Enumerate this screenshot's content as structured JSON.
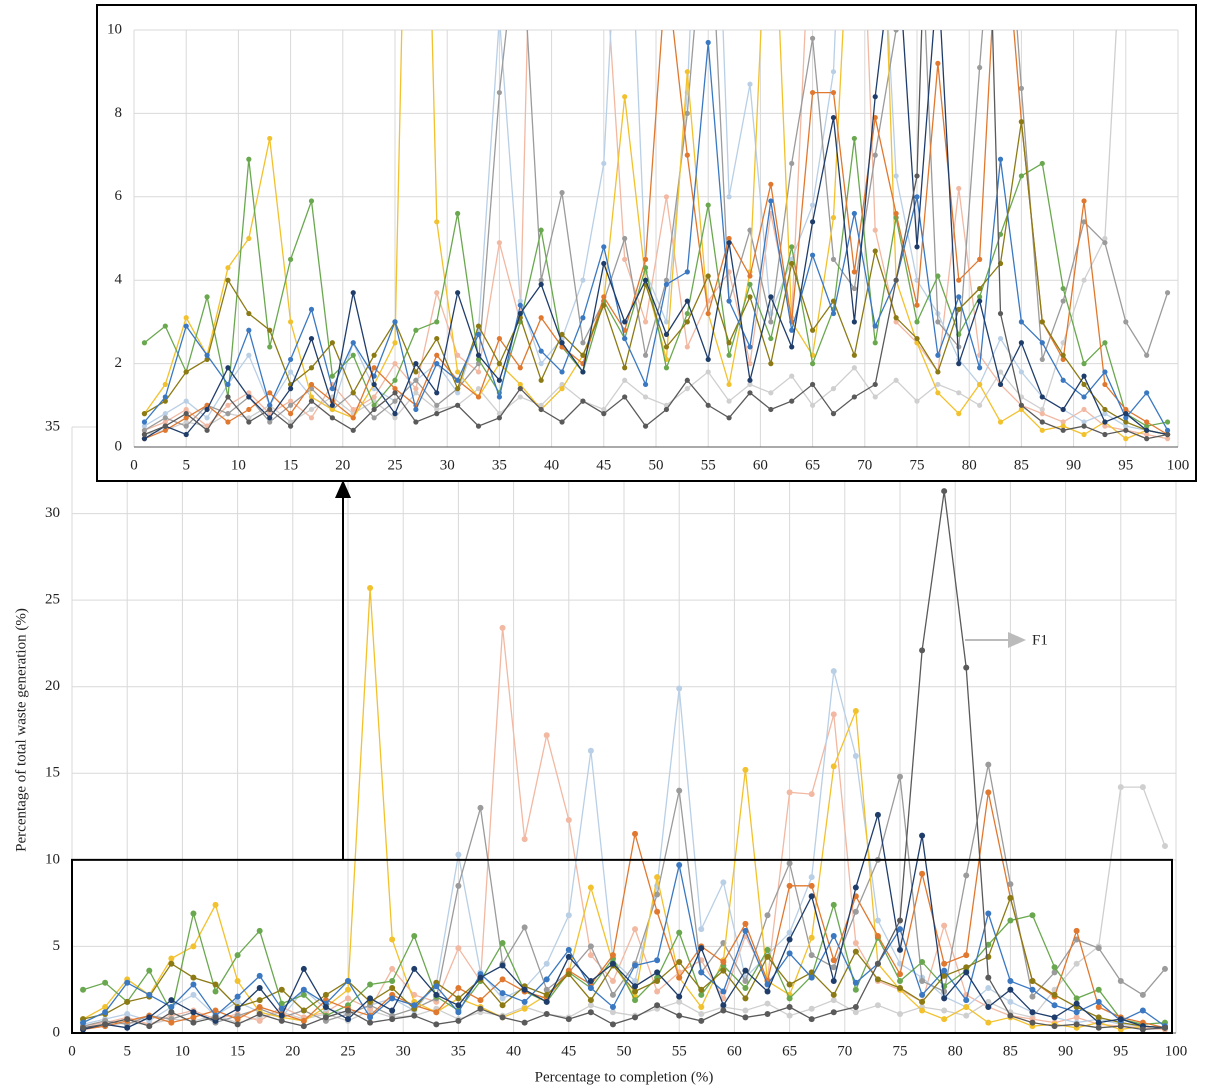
{
  "chart_data": {
    "type": "line",
    "y_label": "Percentage of total waste generation (%)",
    "x_label": "Percentage to completion  (%)",
    "annotation": "F1",
    "xlim": [
      0,
      100
    ],
    "xticks": [
      0,
      5,
      10,
      15,
      20,
      25,
      30,
      35,
      40,
      45,
      50,
      55,
      60,
      65,
      70,
      75,
      80,
      85,
      90,
      95,
      100
    ],
    "ylim": [
      0,
      35
    ],
    "yticks": [
      0,
      5,
      10,
      15,
      20,
      25,
      30,
      35
    ],
    "grid": true,
    "inset": {
      "ylim": [
        0,
        10
      ],
      "yticks": [
        0,
        2,
        4,
        6,
        8,
        10
      ]
    },
    "x": [
      1,
      3,
      5,
      7,
      9,
      11,
      13,
      15,
      17,
      19,
      21,
      23,
      25,
      27,
      29,
      31,
      33,
      35,
      37,
      39,
      41,
      43,
      45,
      47,
      49,
      51,
      53,
      55,
      57,
      59,
      61,
      63,
      65,
      67,
      69,
      71,
      73,
      75,
      77,
      79,
      81,
      83,
      85,
      87,
      89,
      91,
      93,
      95,
      97,
      99
    ],
    "series": [
      {
        "color": "#cfcfcf",
        "values": [
          0.3,
          0.4,
          0.6,
          0.5,
          0.8,
          0.7,
          1.0,
          0.6,
          0.9,
          1.2,
          0.8,
          1.1,
          0.7,
          1.3,
          0.9,
          1.0,
          1.4,
          0.8,
          1.2,
          1.0,
          1.5,
          1.1,
          0.9,
          1.6,
          1.2,
          1.0,
          1.4,
          1.8,
          1.1,
          1.5,
          1.3,
          1.7,
          1.0,
          1.4,
          1.9,
          1.2,
          1.6,
          1.1,
          1.5,
          1.3,
          1.0,
          1.8,
          1.2,
          0.9,
          2.5,
          4.0,
          5.0,
          14.2,
          14.2,
          10.8
        ]
      },
      {
        "color": "#f2b8a2",
        "values": [
          0.4,
          0.6,
          0.9,
          0.5,
          1.0,
          1.3,
          0.8,
          1.1,
          0.7,
          1.5,
          0.9,
          1.2,
          2.0,
          1.4,
          3.7,
          2.2,
          1.8,
          4.9,
          3.0,
          23.4,
          11.2,
          17.2,
          12.3,
          4.5,
          3.0,
          6.0,
          2.4,
          3.5,
          4.2,
          2.0,
          5.6,
          3.1,
          13.9,
          13.8,
          18.4,
          5.2,
          3.0,
          2.5,
          1.8,
          6.2,
          2.2,
          1.5,
          1.0,
          0.8,
          0.6,
          0.9,
          0.5,
          0.4,
          0.3,
          0.2
        ]
      },
      {
        "color": "#b9cfe6",
        "values": [
          0.5,
          0.8,
          1.1,
          0.7,
          1.5,
          2.2,
          1.0,
          1.8,
          1.2,
          0.9,
          2.5,
          1.4,
          1.1,
          1.6,
          2.0,
          1.3,
          2.8,
          10.3,
          3.5,
          2.0,
          2.6,
          4.0,
          6.8,
          16.3,
          4.2,
          3.0,
          8.5,
          19.9,
          6.0,
          8.7,
          3.2,
          4.5,
          5.8,
          9.0,
          20.9,
          16.0,
          6.5,
          4.0,
          3.2,
          2.1,
          1.5,
          2.6,
          1.8,
          1.2,
          0.9,
          0.6,
          0.8,
          0.5,
          0.4,
          0.3
        ]
      },
      {
        "color": "#9b9b9b",
        "values": [
          0.4,
          0.7,
          0.5,
          1.0,
          0.8,
          1.2,
          0.6,
          1.0,
          1.4,
          0.9,
          1.3,
          0.7,
          1.1,
          1.6,
          1.0,
          1.4,
          2.0,
          8.5,
          13.0,
          4.0,
          6.1,
          2.5,
          3.5,
          5.0,
          2.2,
          4.0,
          8.0,
          14.0,
          3.5,
          5.2,
          3.0,
          6.8,
          9.8,
          4.5,
          3.8,
          7.0,
          10.0,
          14.8,
          3.0,
          2.4,
          9.1,
          15.5,
          8.6,
          2.1,
          3.5,
          5.4,
          4.9,
          3.0,
          2.2,
          3.7
        ]
      },
      {
        "color": "#f2c12e",
        "values": [
          0.8,
          1.5,
          3.1,
          2.2,
          4.3,
          5.0,
          7.4,
          3.0,
          1.2,
          0.9,
          0.7,
          1.5,
          2.5,
          25.7,
          5.4,
          1.8,
          1.2,
          2.0,
          1.5,
          0.9,
          1.4,
          2.2,
          3.5,
          8.4,
          4.0,
          2.1,
          9.0,
          3.2,
          1.5,
          4.2,
          15.2,
          3.0,
          2.2,
          5.5,
          15.4,
          18.6,
          4.0,
          2.5,
          1.3,
          0.8,
          1.5,
          0.6,
          0.9,
          0.4,
          0.5,
          0.3,
          0.6,
          0.2,
          0.4,
          0.3
        ]
      },
      {
        "color": "#6aa84f",
        "values": [
          2.5,
          2.9,
          1.8,
          3.6,
          1.2,
          6.9,
          2.4,
          4.5,
          5.9,
          1.7,
          2.2,
          1.0,
          1.6,
          2.8,
          3.0,
          5.6,
          2.1,
          1.3,
          3.0,
          5.2,
          2.4,
          1.8,
          3.5,
          2.6,
          4.3,
          1.9,
          3.2,
          5.8,
          2.2,
          3.9,
          2.6,
          4.8,
          2.0,
          3.3,
          7.4,
          2.5,
          5.5,
          3.0,
          4.1,
          2.7,
          3.6,
          5.1,
          6.5,
          6.8,
          3.8,
          2.0,
          2.5,
          0.8,
          0.5,
          0.6
        ]
      },
      {
        "color": "#e0782f",
        "values": [
          0.2,
          0.4,
          0.7,
          1.0,
          0.6,
          0.9,
          1.3,
          0.8,
          1.5,
          1.1,
          0.7,
          1.9,
          1.4,
          1.0,
          2.2,
          1.6,
          1.2,
          2.6,
          1.9,
          3.1,
          2.4,
          2.0,
          3.6,
          2.8,
          4.5,
          11.5,
          7.0,
          3.2,
          5.0,
          4.1,
          6.3,
          3.0,
          8.5,
          8.5,
          4.2,
          7.9,
          5.6,
          3.4,
          9.2,
          4.0,
          4.5,
          13.9,
          7.8,
          3.0,
          2.1,
          5.9,
          1.5,
          0.9,
          0.6,
          0.3
        ]
      },
      {
        "color": "#8c7a14",
        "values": [
          0.8,
          1.1,
          1.8,
          2.1,
          4.0,
          3.2,
          2.8,
          1.5,
          1.9,
          2.5,
          1.3,
          2.2,
          3.0,
          1.8,
          2.6,
          1.4,
          2.9,
          2.0,
          3.1,
          1.6,
          2.7,
          2.2,
          3.4,
          1.9,
          3.9,
          2.4,
          3.0,
          4.1,
          2.5,
          3.6,
          2.0,
          4.4,
          2.8,
          3.5,
          2.2,
          4.7,
          3.1,
          2.6,
          1.8,
          3.3,
          3.8,
          4.4,
          7.8,
          3.0,
          2.2,
          1.5,
          0.9,
          0.6,
          0.4,
          0.3
        ]
      },
      {
        "color": "#3a78c2",
        "values": [
          0.6,
          1.2,
          2.9,
          2.2,
          1.5,
          2.8,
          1.0,
          2.1,
          3.3,
          1.4,
          2.5,
          1.7,
          3.0,
          0.9,
          2.0,
          1.6,
          2.7,
          1.2,
          3.4,
          2.3,
          1.8,
          3.1,
          4.8,
          2.6,
          1.5,
          3.9,
          4.2,
          9.7,
          3.5,
          2.4,
          5.9,
          2.8,
          4.6,
          3.2,
          5.6,
          2.9,
          4.0,
          6.0,
          2.2,
          3.6,
          1.9,
          6.9,
          3.0,
          2.5,
          1.6,
          1.2,
          1.8,
          0.7,
          1.3,
          0.4
        ]
      },
      {
        "color": "#1f3d6b",
        "values": [
          0.2,
          0.5,
          0.3,
          0.9,
          1.9,
          1.2,
          0.7,
          1.4,
          2.6,
          1.0,
          3.7,
          1.5,
          0.8,
          2.0,
          1.3,
          3.7,
          2.2,
          1.6,
          3.2,
          3.9,
          2.5,
          1.8,
          4.4,
          3.0,
          4.0,
          2.7,
          3.5,
          2.1,
          4.9,
          1.6,
          3.6,
          2.4,
          5.4,
          7.9,
          3.0,
          8.4,
          12.6,
          4.8,
          11.4,
          2.0,
          3.5,
          1.5,
          2.5,
          1.2,
          0.9,
          1.7,
          0.6,
          0.8,
          0.4,
          0.3
        ]
      },
      {
        "color": "#5a5a5a",
        "values": [
          0.3,
          0.5,
          0.8,
          0.4,
          1.2,
          0.6,
          0.9,
          0.5,
          1.1,
          0.7,
          0.4,
          0.9,
          1.3,
          0.6,
          0.8,
          1.0,
          0.5,
          0.7,
          1.4,
          0.9,
          0.6,
          1.1,
          0.8,
          1.2,
          0.5,
          0.9,
          1.6,
          1.0,
          0.7,
          1.3,
          0.9,
          1.1,
          1.5,
          0.8,
          1.2,
          1.5,
          4.0,
          6.5,
          22.1,
          31.3,
          21.1,
          3.2,
          1.0,
          0.6,
          0.4,
          0.5,
          0.3,
          0.4,
          0.2,
          0.3
        ]
      }
    ]
  }
}
